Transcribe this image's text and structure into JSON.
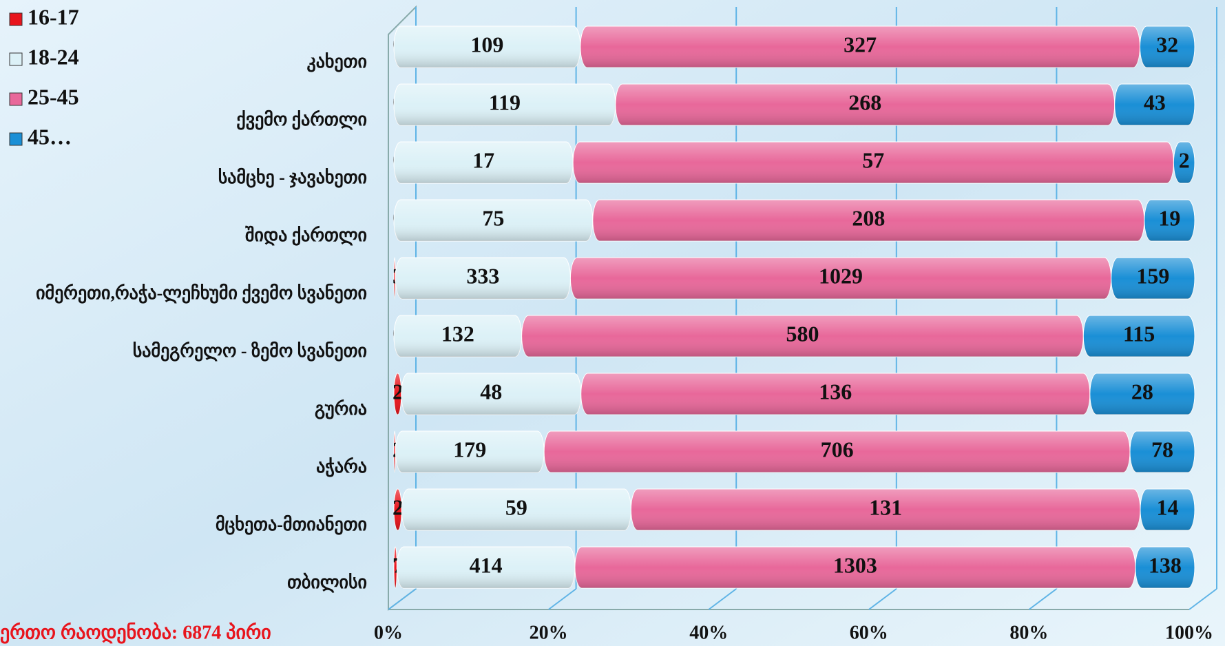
{
  "chart_data": {
    "type": "stacked-bar-100",
    "categories": [
      "კახეთი",
      "ქვემო ქართლი",
      "სამცხე - ჯავახეთი",
      "შიდა ქართლი",
      "იმერეთი,რაჭა-ლეჩხუმი ქვემო სვანეთი",
      "სამეგრელო - ზემო სვანეთი",
      "გურია",
      "აჭარა",
      "მცხეთა-მთიანეთი",
      "თბილისი"
    ],
    "series": [
      {
        "name": "16-17",
        "color": "#e8141c",
        "values": [
          0,
          0,
          0,
          0,
          3,
          0,
          2,
          2,
          2,
          7
        ]
      },
      {
        "name": "18-24",
        "color": "#dcf1f7",
        "values": [
          109,
          119,
          17,
          75,
          333,
          132,
          48,
          179,
          59,
          414
        ]
      },
      {
        "name": "25-45",
        "color": "#e8689a",
        "values": [
          327,
          268,
          57,
          208,
          1029,
          580,
          136,
          706,
          131,
          1303
        ]
      },
      {
        "name": "45…",
        "color": "#1a8fd6",
        "values": [
          32,
          43,
          2,
          19,
          159,
          115,
          28,
          78,
          14,
          138
        ]
      }
    ],
    "xlim": [
      0,
      100
    ],
    "xticks": [
      {
        "value": 0,
        "label": "0%"
      },
      {
        "value": 20,
        "label": "20%"
      },
      {
        "value": 40,
        "label": "40%"
      },
      {
        "value": 60,
        "label": "60%"
      },
      {
        "value": 80,
        "label": "80%"
      },
      {
        "value": 100,
        "label": "100%"
      }
    ],
    "grid": true,
    "legend": "top-left",
    "note": "ერთო  რაოდენობა: 6874  პირი"
  }
}
